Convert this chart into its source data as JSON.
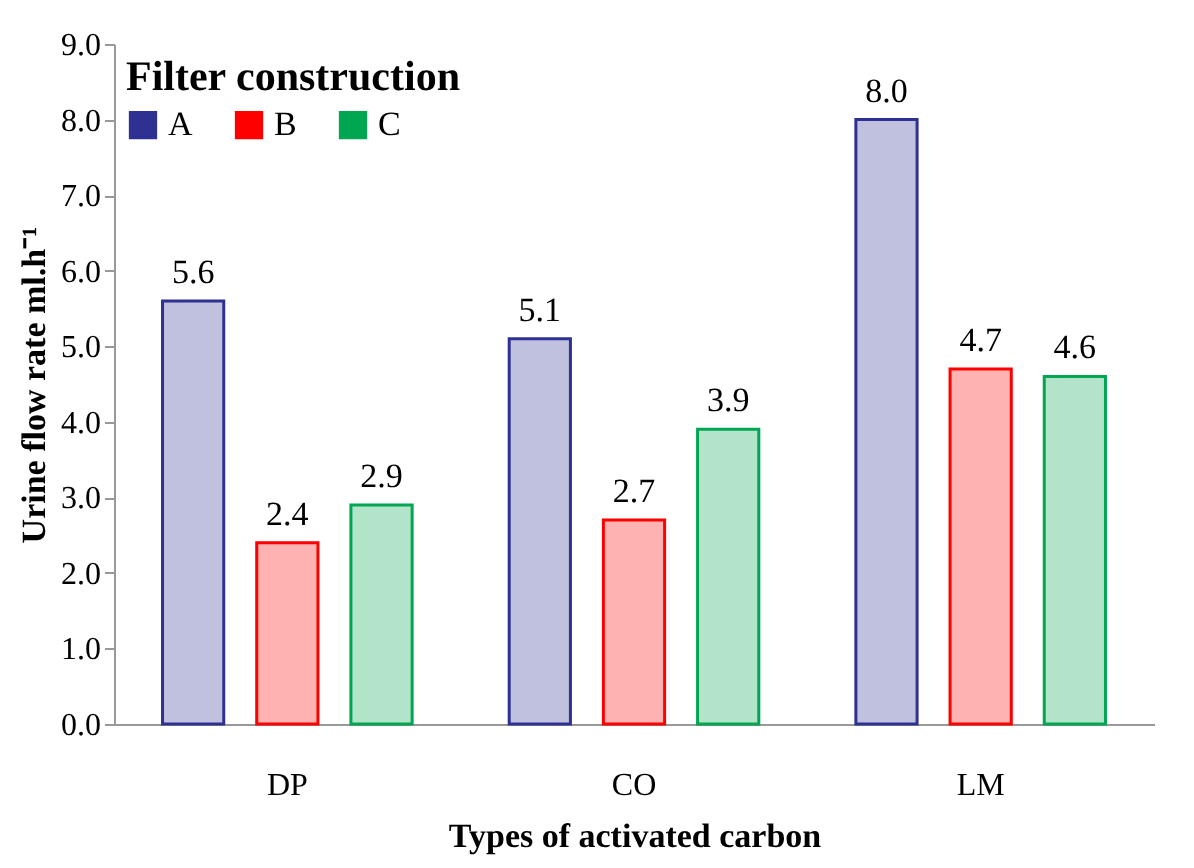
{
  "chart_data": {
    "type": "bar",
    "xlabel": "Types of activated carbon",
    "ylabel": "Urine flow rate ml.h⁻¹",
    "legend_title": "Filter construction",
    "categories": [
      "DP",
      "CO",
      "LM"
    ],
    "series": [
      {
        "name": "A",
        "color": "#2e3192",
        "values": [
          5.6,
          5.1,
          8.0
        ],
        "value_labels": [
          "5.6",
          "5.1",
          "8.0"
        ]
      },
      {
        "name": "B",
        "color": "#ff0000",
        "values": [
          2.4,
          2.7,
          4.7
        ],
        "value_labels": [
          "2.4",
          "2.7",
          "4.7"
        ]
      },
      {
        "name": "C",
        "color": "#00a651",
        "values": [
          2.9,
          3.9,
          4.6
        ],
        "value_labels": [
          "2.9",
          "3.9",
          "4.6"
        ]
      }
    ],
    "ylim": [
      0,
      9
    ],
    "yticks": [
      {
        "value": 0,
        "label": "0.0"
      },
      {
        "value": 1,
        "label": "1.0"
      },
      {
        "value": 2,
        "label": "2.0"
      },
      {
        "value": 3,
        "label": "3.0"
      },
      {
        "value": 4,
        "label": "4.0"
      },
      {
        "value": 5,
        "label": "5.0"
      },
      {
        "value": 6,
        "label": "6.0"
      },
      {
        "value": 7,
        "label": "7.0"
      },
      {
        "value": 8,
        "label": "8.0"
      },
      {
        "value": 9,
        "label": "9.0"
      }
    ],
    "legend": "top left"
  }
}
